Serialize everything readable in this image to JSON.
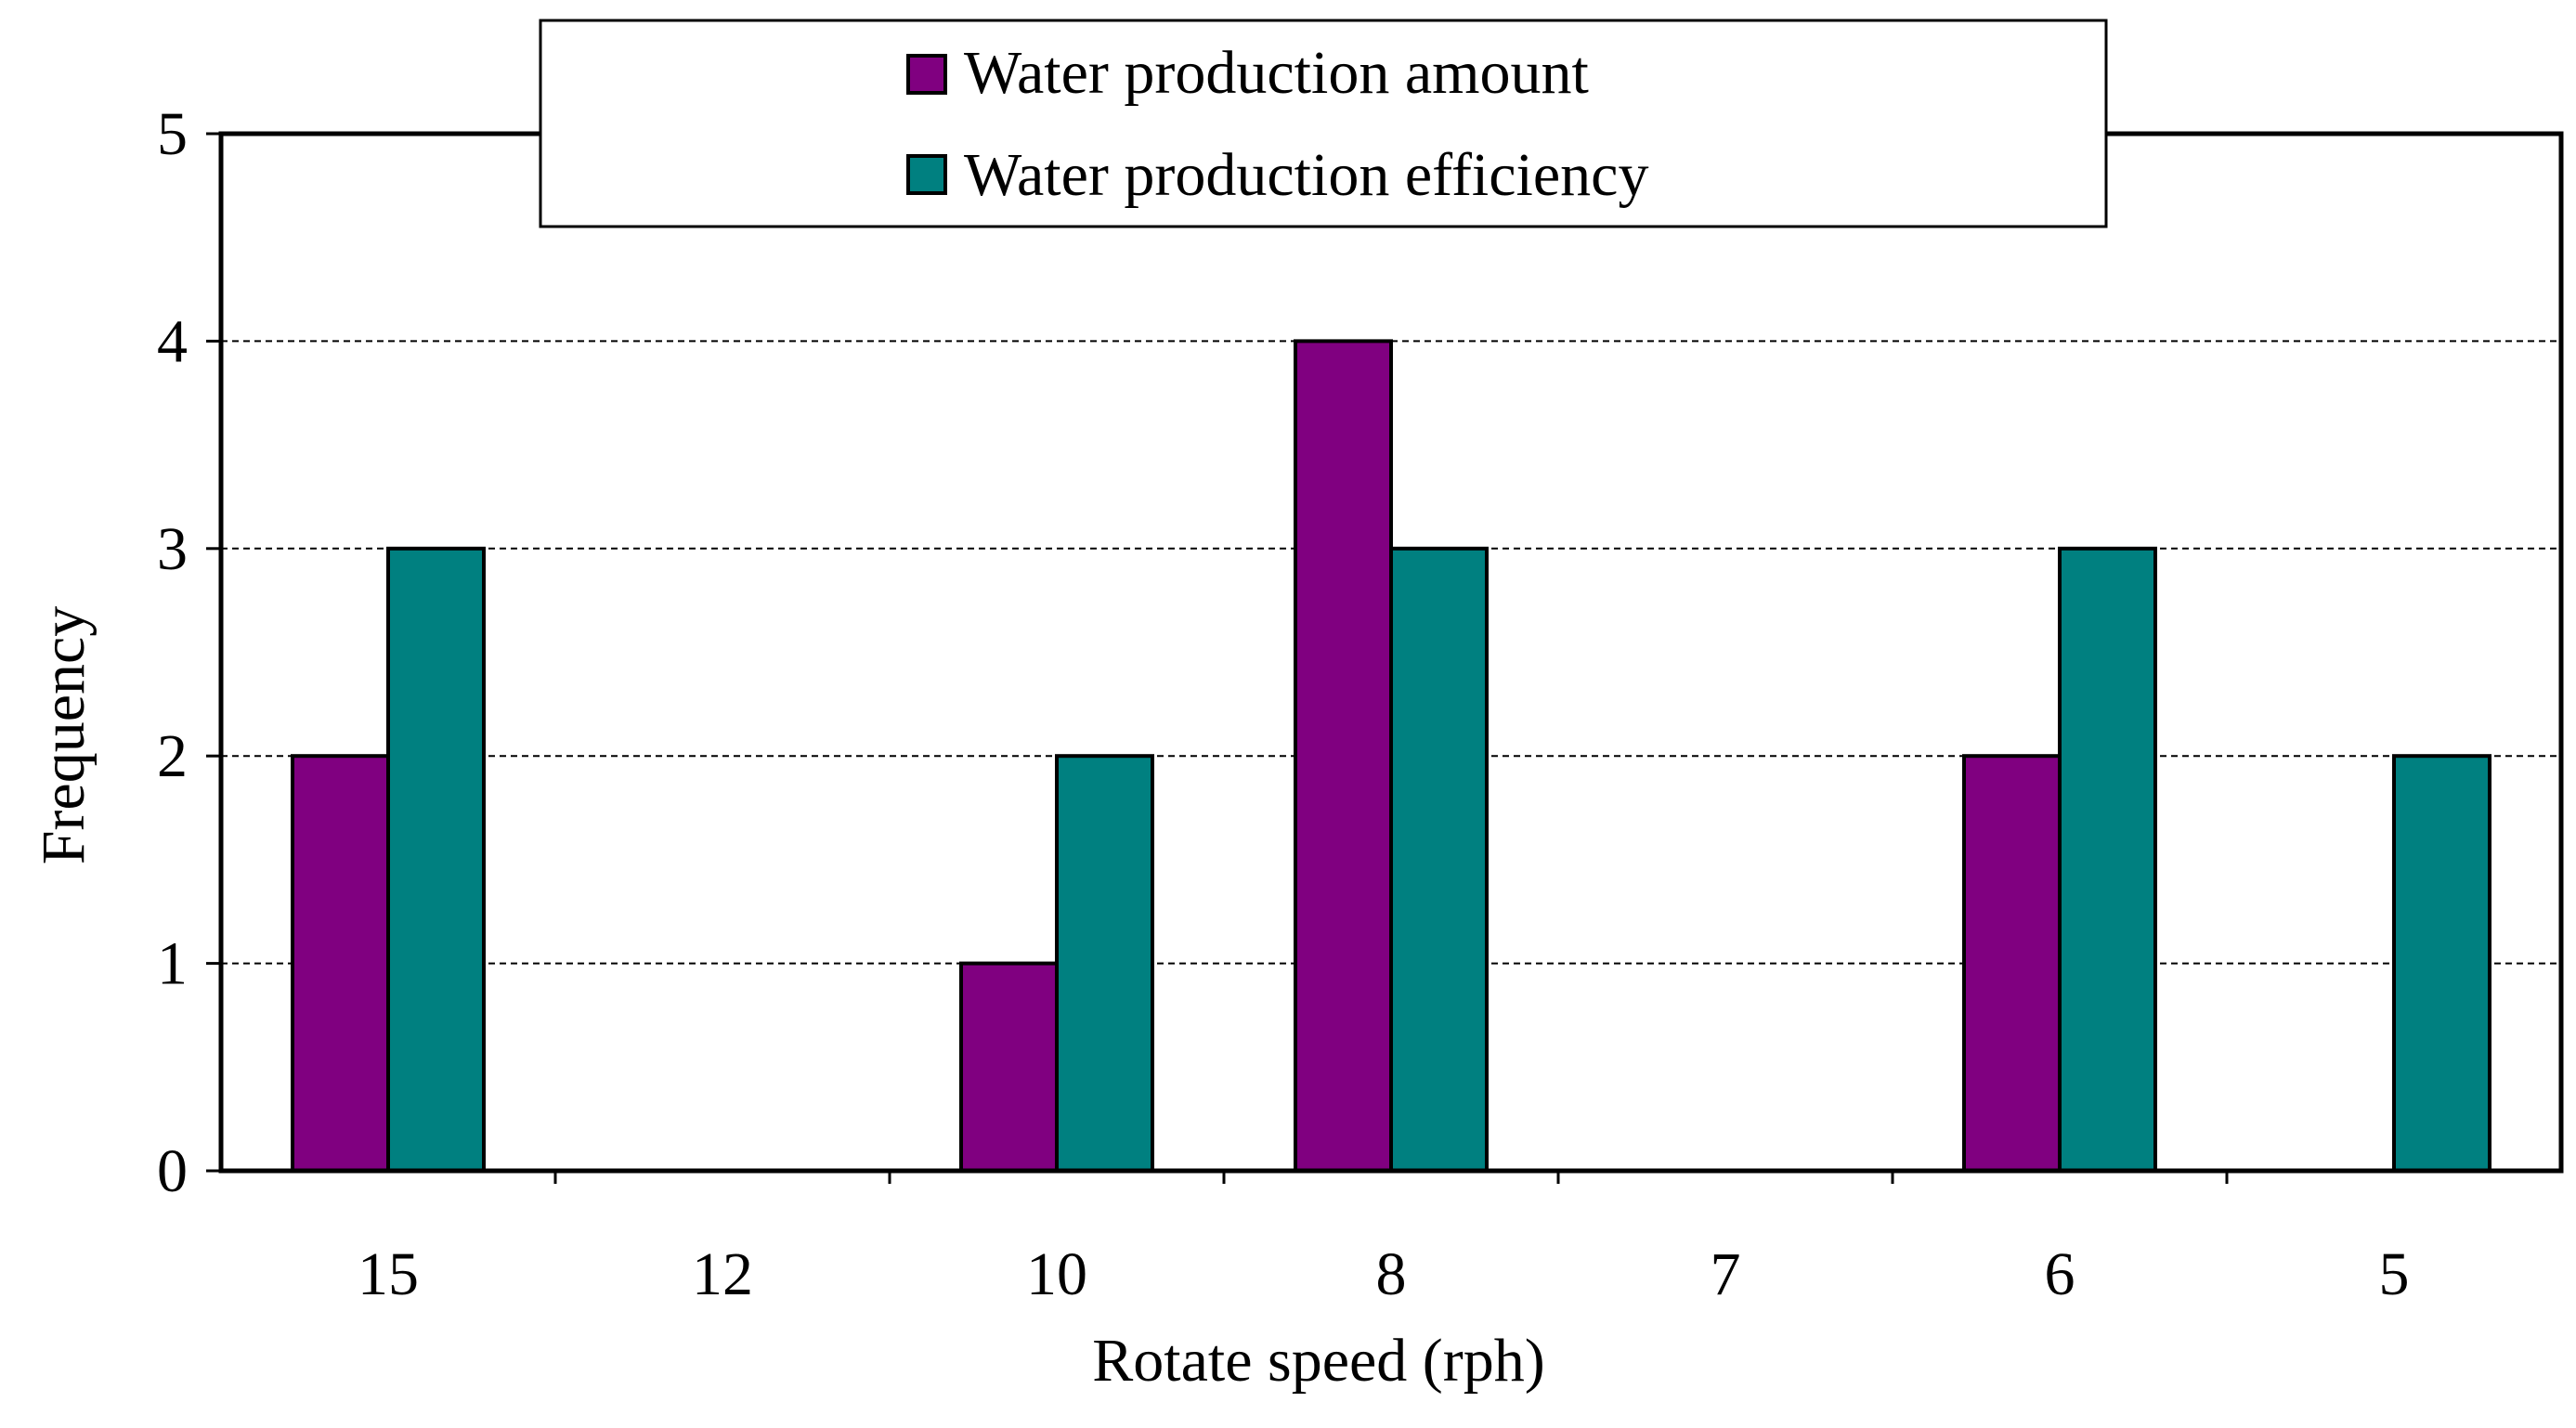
{
  "chart_data": {
    "type": "bar",
    "title": "",
    "xlabel": "Rotate speed (rph)",
    "ylabel": "Frequency",
    "categories": [
      "15",
      "12",
      "10",
      "8",
      "7",
      "6",
      "5"
    ],
    "ylim": [
      0,
      5
    ],
    "yticks": [
      "0",
      "1",
      "2",
      "3",
      "4",
      "5"
    ],
    "grid": "horizontal dashed",
    "legend_position": "top-center",
    "series": [
      {
        "name": "Water production amount",
        "color": "#800080",
        "values": [
          2,
          0,
          1,
          4,
          0,
          2,
          0
        ]
      },
      {
        "name": "Water production efficiency",
        "color": "#008080",
        "values": [
          3,
          0,
          2,
          3,
          0,
          3,
          2
        ]
      }
    ]
  }
}
